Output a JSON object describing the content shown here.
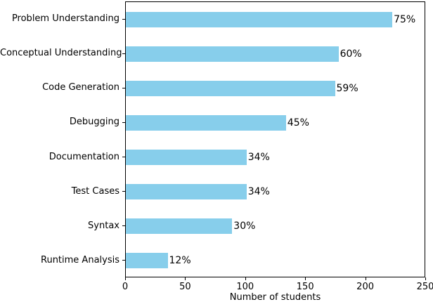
{
  "chart_data": {
    "type": "bar",
    "orientation": "horizontal",
    "title": "",
    "categories": [
      "Problem Understanding",
      "Conceptual Understanding",
      "Code Generation",
      "Debugging",
      "Documentation",
      "Test Cases",
      "Syntax",
      "Runtime Analysis"
    ],
    "values": [
      223,
      178,
      175,
      134,
      101,
      101,
      89,
      35
    ],
    "value_labels": [
      "75%",
      "60%",
      "59%",
      "45%",
      "34%",
      "34%",
      "30%",
      "12%"
    ],
    "xlabel": "Number of students",
    "ylabel": "",
    "xlim": [
      0,
      250
    ],
    "xticks": [
      0,
      50,
      100,
      150,
      200,
      250
    ],
    "xtick_labels": [
      "0",
      "50",
      "100",
      "150",
      "200",
      "250"
    ],
    "grid": false,
    "legend": null,
    "bar_color": "#87CEEB",
    "text_color": "#000000",
    "background_color": "#ffffff"
  }
}
